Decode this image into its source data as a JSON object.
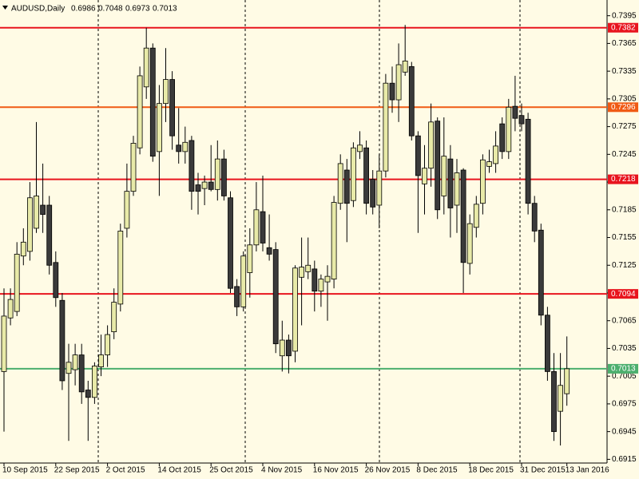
{
  "chart_data": {
    "type": "candlestick",
    "title": "AUDUSD,Daily",
    "x": [
      "10 Sep 2015",
      null,
      null,
      null,
      null,
      null,
      null,
      null,
      "22 Sep 2015",
      null,
      null,
      null,
      null,
      null,
      null,
      null,
      "2 Oct 2015",
      null,
      null,
      null,
      null,
      null,
      null,
      null,
      "14 Oct 2015",
      null,
      null,
      null,
      null,
      null,
      null,
      null,
      "25 Oct 2015",
      null,
      null,
      null,
      null,
      null,
      null,
      null,
      "4 Nov 2015",
      null,
      null,
      null,
      null,
      null,
      null,
      null,
      "16 Nov 2015",
      null,
      null,
      null,
      null,
      null,
      null,
      null,
      "26 Nov 2015",
      null,
      null,
      null,
      null,
      null,
      null,
      null,
      "8 Dec 2015",
      null,
      null,
      null,
      null,
      null,
      null,
      null,
      "18 Dec 2015",
      null,
      null,
      null,
      null,
      null,
      null,
      null,
      "31 Dec 2015",
      null,
      null,
      null,
      null,
      null,
      null,
      "13 Jan 2016"
    ],
    "open": [
      0.701,
      0.7068,
      0.7075,
      0.7135,
      0.714,
      0.7165,
      0.719,
      0.719,
      0.7128,
      0.7087,
      0.7008,
      0.7012,
      0.7028,
      0.699,
      0.6982,
      0.7015,
      0.7028,
      0.7053,
      0.7083,
      0.7165,
      0.7205,
      0.7252,
      0.7318,
      0.736,
      0.7248,
      0.73,
      0.7326,
      0.7255,
      0.7248,
      0.726,
      0.7212,
      0.7208,
      0.7215,
      0.7207,
      0.724,
      0.7198,
      0.7102,
      0.708,
      0.7117,
      0.7147,
      0.7183,
      0.7144,
      0.7142,
      0.7027,
      0.7044,
      0.7032,
      0.7112,
      0.7118,
      0.7121,
      0.7097,
      0.7107,
      0.711,
      0.7192,
      0.7228,
      0.7195,
      0.7248,
      0.7252,
      0.7218,
      0.719,
      0.7227,
      0.7322,
      0.7304,
      0.7334,
      0.734,
      0.7265,
      0.7213,
      0.723,
      0.7281,
      0.72,
      0.724,
      0.719,
      0.7228,
      0.7127,
      0.7166,
      0.7192,
      0.7232,
      0.7235,
      0.7278,
      0.7248,
      0.7297,
      0.7287,
      0.7283,
      0.7192,
      0.7163,
      0.7071,
      0.701,
      0.6967,
      0.6986
    ],
    "high": [
      0.71,
      0.71,
      0.715,
      0.7165,
      0.7215,
      0.728,
      0.7235,
      0.72,
      0.714,
      0.7095,
      0.704,
      0.704,
      0.704,
      0.7,
      0.702,
      0.705,
      0.706,
      0.71,
      0.717,
      0.7235,
      0.7265,
      0.734,
      0.7382,
      0.7365,
      0.732,
      0.736,
      0.7335,
      0.7295,
      0.7275,
      0.7265,
      0.7225,
      0.7222,
      0.7255,
      0.726,
      0.725,
      0.7205,
      0.711,
      0.714,
      0.7165,
      0.7215,
      0.7222,
      0.718,
      0.715,
      0.7065,
      0.705,
      0.7125,
      0.7155,
      0.7155,
      0.713,
      0.7115,
      0.7125,
      0.72,
      0.7245,
      0.724,
      0.7258,
      0.727,
      0.726,
      0.7228,
      0.7245,
      0.7332,
      0.734,
      0.7365,
      0.7385,
      0.7345,
      0.727,
      0.7255,
      0.73,
      0.7285,
      0.7285,
      0.7255,
      0.724,
      0.723,
      0.718,
      0.72,
      0.7245,
      0.725,
      0.727,
      0.7285,
      0.7305,
      0.733,
      0.73,
      0.729,
      0.72,
      0.717,
      0.708,
      0.703,
      0.703,
      0.7048
    ],
    "low": [
      0.6945,
      0.706,
      0.707,
      0.7125,
      0.713,
      0.716,
      0.716,
      0.7115,
      0.708,
      0.699,
      0.6935,
      0.6995,
      0.6975,
      0.6935,
      0.6975,
      0.7005,
      0.7015,
      0.7045,
      0.7075,
      0.7155,
      0.72,
      0.7245,
      0.7305,
      0.7237,
      0.72,
      0.728,
      0.725,
      0.7235,
      0.7235,
      0.7185,
      0.718,
      0.719,
      0.7205,
      0.7195,
      0.7195,
      0.7095,
      0.707,
      0.7075,
      0.709,
      0.714,
      0.714,
      0.713,
      0.703,
      0.701,
      0.7008,
      0.702,
      0.706,
      0.711,
      0.7075,
      0.708,
      0.7065,
      0.71,
      0.7185,
      0.715,
      0.7188,
      0.724,
      0.718,
      0.718,
      0.7165,
      0.722,
      0.729,
      0.728,
      0.733,
      0.726,
      0.716,
      0.718,
      0.721,
      0.7175,
      0.718,
      0.7155,
      0.716,
      0.7095,
      0.7115,
      0.7155,
      0.718,
      0.7225,
      0.7225,
      0.724,
      0.724,
      0.727,
      0.727,
      0.718,
      0.715,
      0.706,
      0.7,
      0.6935,
      0.693,
      0.6973
    ],
    "close": [
      0.707,
      0.7088,
      0.7137,
      0.715,
      0.7198,
      0.72,
      0.718,
      0.7125,
      0.709,
      0.7,
      0.702,
      0.7028,
      0.6988,
      0.6982,
      0.7016,
      0.7028,
      0.705,
      0.7085,
      0.7162,
      0.7205,
      0.7257,
      0.733,
      0.736,
      0.7243,
      0.73,
      0.7326,
      0.7265,
      0.7248,
      0.7258,
      0.7205,
      0.7205,
      0.7215,
      0.7207,
      0.724,
      0.72,
      0.71,
      0.708,
      0.7135,
      0.7147,
      0.7185,
      0.7149,
      0.7137,
      0.704,
      0.7044,
      0.7027,
      0.7122,
      0.7123,
      0.7125,
      0.7097,
      0.711,
      0.7113,
      0.7193,
      0.7235,
      0.7192,
      0.7252,
      0.7255,
      0.7192,
      0.7188,
      0.7227,
      0.7322,
      0.7304,
      0.7342,
      0.7346,
      0.7265,
      0.7222,
      0.723,
      0.728,
      0.7185,
      0.7243,
      0.7187,
      0.7225,
      0.7128,
      0.717,
      0.7191,
      0.7239,
      0.7237,
      0.7254,
      0.7248,
      0.7296,
      0.7284,
      0.7278,
      0.7192,
      0.7162,
      0.7071,
      0.701,
      0.6945,
      0.6995,
      0.7013
    ],
    "up_color": "#e8eaa8",
    "down_color": "#3a3a3a",
    "ylim": [
      0.6911,
      0.7412
    ],
    "yticks": [
      0.7395,
      0.7365,
      0.7335,
      0.7305,
      0.7275,
      0.7245,
      0.7215,
      0.7185,
      0.7155,
      0.7125,
      0.7095,
      0.7065,
      0.7035,
      0.7005,
      0.6975,
      0.6945,
      0.6915
    ],
    "levels": [
      {
        "value": 0.7382,
        "color": "#e8141e"
      },
      {
        "value": 0.7296,
        "color": "#f05a14"
      },
      {
        "value": 0.7218,
        "color": "#e8141e"
      },
      {
        "value": 0.7094,
        "color": "#e8141e"
      },
      {
        "value": 0.7013,
        "color": "#4caf6e"
      }
    ]
  }
}
